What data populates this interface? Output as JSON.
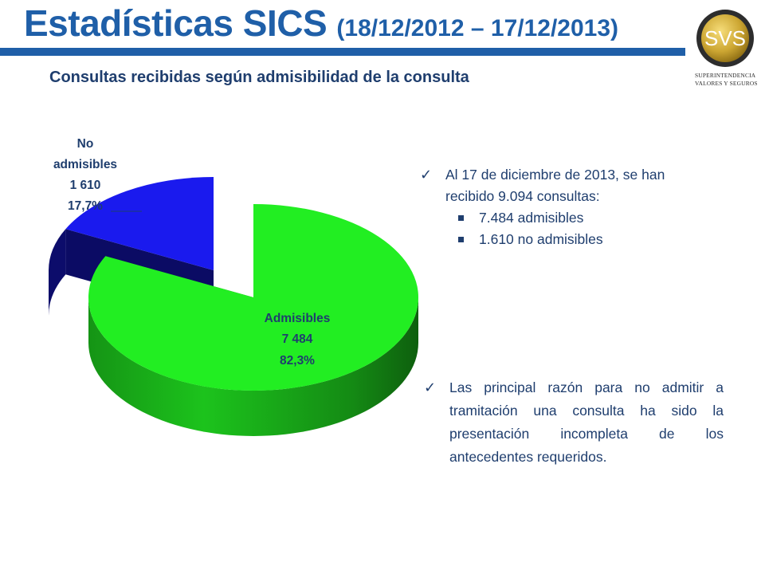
{
  "header": {
    "title_main": "Estadísticas SICS",
    "title_dates": "(18/12/2012 – 17/12/2013)",
    "subtitle": "Consultas recibidas según admisibilidad de la consulta"
  },
  "logo": {
    "initials": "SVS",
    "line1": "SUPERINTENDENCIA",
    "line2": "VALORES Y SEGUROS"
  },
  "colors": {
    "title_blue": "#1f5fa8",
    "text_navy": "#1f3e6e",
    "slice_admisibles": "#22ee22",
    "slice_no_admisibles": "#1a1aee"
  },
  "chart_data": {
    "type": "pie",
    "style": "3d-exploded",
    "slices": [
      {
        "name": "Admisibles",
        "value": 7484,
        "value_label": "7 484",
        "percent_label": "82,3%",
        "color": "#22ee22"
      },
      {
        "name": "No admisibles",
        "value": 1610,
        "value_label": "1 610",
        "percent_label": "17,7%",
        "color": "#1a1aee"
      }
    ],
    "labels": {
      "admisibles": [
        "Admisibles",
        "7 484",
        "82,3%"
      ],
      "no_admisibles": [
        "No",
        "admisibles",
        "1 610",
        "17,7%"
      ]
    }
  },
  "notes": {
    "bullet1": "Al 17 de diciembre de 2013, se han recibido 9.094 consultas:",
    "sub1": "7.484 admisibles",
    "sub2": "1.610 no admisibles",
    "bullet2": "Las principal razón para no admitir a tramitación una consulta ha sido la presentación incompleta de los antecedentes requeridos."
  }
}
